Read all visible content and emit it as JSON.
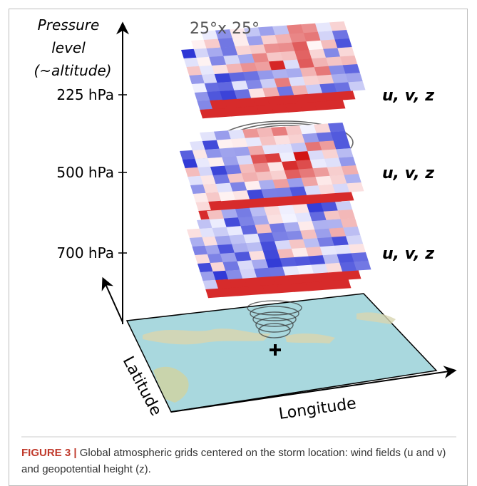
{
  "figure": {
    "axis_title": [
      "Pressure",
      "level",
      "(~altitude)"
    ],
    "grid_size": "25°x 25°",
    "levels": [
      {
        "label": "225 hPa",
        "variables": "u, v, z"
      },
      {
        "label": "500 hPa",
        "variables": "u, v, z"
      },
      {
        "label": "700 hPa",
        "variables": "u, v, z"
      }
    ],
    "x_axis": "Longitude",
    "y_axis": "Latitude"
  },
  "caption": {
    "label": "FIGURE 3 |",
    "text": "Global atmospheric grids centered on the storm location: wind fields (u and v) and geopotential height (z)."
  }
}
